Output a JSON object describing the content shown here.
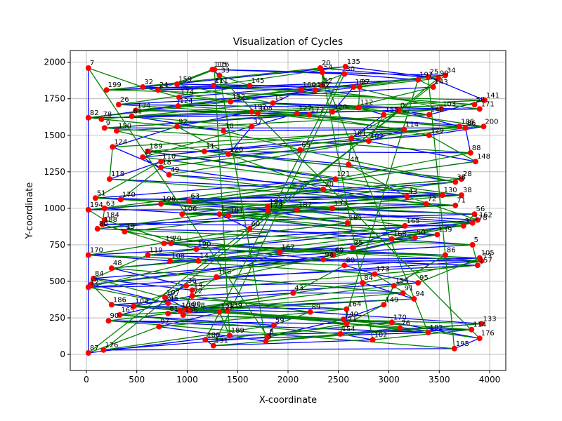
{
  "chart_data": {
    "type": "scatter",
    "title": "Visualization of Cycles",
    "xlabel": "X-coordinate",
    "ylabel": "Y-coordinate",
    "xlim": [
      -160,
      4160
    ],
    "ylim": [
      -110,
      2080
    ],
    "xticks": [
      0,
      500,
      1000,
      1500,
      2000,
      2500,
      3000,
      3500,
      4000
    ],
    "yticks": [
      0,
      250,
      500,
      750,
      1000,
      1250,
      1500,
      1750,
      2000
    ],
    "grid": true,
    "marker_color": "#ff0000",
    "cycle_colors": [
      "#0000ff",
      "#008000"
    ],
    "points": [
      {
        "label": "7",
        "x": 20,
        "y": 1960
      },
      {
        "label": "115",
        "x": 1250,
        "y": 1950
      },
      {
        "label": "116",
        "x": 1270,
        "y": 1950
      },
      {
        "label": "20",
        "x": 2320,
        "y": 1960
      },
      {
        "label": "135",
        "x": 2570,
        "y": 1970
      },
      {
        "label": "33",
        "x": 1320,
        "y": 1910
      },
      {
        "label": "54",
        "x": 2340,
        "y": 1930
      },
      {
        "label": "30",
        "x": 2560,
        "y": 1920
      },
      {
        "label": "25",
        "x": 3390,
        "y": 1900
      },
      {
        "label": "34",
        "x": 3560,
        "y": 1910
      },
      {
        "label": "90",
        "x": 3490,
        "y": 1890
      },
      {
        "label": "197",
        "x": 3290,
        "y": 1880
      },
      {
        "label": "32",
        "x": 560,
        "y": 1830
      },
      {
        "label": "24",
        "x": 710,
        "y": 1810
      },
      {
        "label": "159",
        "x": 900,
        "y": 1850
      },
      {
        "label": "199",
        "x": 200,
        "y": 1810
      },
      {
        "label": "111",
        "x": 1260,
        "y": 1840
      },
      {
        "label": "145",
        "x": 1620,
        "y": 1840
      },
      {
        "label": "52",
        "x": 2340,
        "y": 1840
      },
      {
        "label": "160",
        "x": 2130,
        "y": 1810
      },
      {
        "label": "162",
        "x": 2270,
        "y": 1810
      },
      {
        "label": "186",
        "x": 2650,
        "y": 1830
      },
      {
        "label": "27",
        "x": 2710,
        "y": 1830
      },
      {
        "label": "143",
        "x": 3440,
        "y": 1830
      },
      {
        "label": "174",
        "x": 920,
        "y": 1760
      },
      {
        "label": "132",
        "x": 1430,
        "y": 1730
      },
      {
        "label": "15",
        "x": 1850,
        "y": 1720
      },
      {
        "label": "141",
        "x": 3950,
        "y": 1740
      },
      {
        "label": "58",
        "x": 3850,
        "y": 1710
      },
      {
        "label": "26",
        "x": 320,
        "y": 1710
      },
      {
        "label": "124",
        "x": 910,
        "y": 1700
      },
      {
        "label": "134",
        "x": 490,
        "y": 1670
      },
      {
        "label": "171",
        "x": 3900,
        "y": 1680
      },
      {
        "label": "103",
        "x": 3520,
        "y": 1680
      },
      {
        "label": "112",
        "x": 2700,
        "y": 1690
      },
      {
        "label": "120",
        "x": 2440,
        "y": 1660
      },
      {
        "label": "140",
        "x": 3400,
        "y": 1640
      },
      {
        "label": "82",
        "x": 20,
        "y": 1620
      },
      {
        "label": "78",
        "x": 150,
        "y": 1610
      },
      {
        "label": "61",
        "x": 450,
        "y": 1630
      },
      {
        "label": "192",
        "x": 1640,
        "y": 1660
      },
      {
        "label": "108",
        "x": 1700,
        "y": 1650
      },
      {
        "label": "127",
        "x": 2090,
        "y": 1650
      },
      {
        "label": "177",
        "x": 2210,
        "y": 1640
      },
      {
        "label": "0",
        "x": 3100,
        "y": 1670
      },
      {
        "label": "155",
        "x": 2950,
        "y": 1640
      },
      {
        "label": "200",
        "x": 3940,
        "y": 1560
      },
      {
        "label": "9",
        "x": 180,
        "y": 1550
      },
      {
        "label": "150",
        "x": 300,
        "y": 1530
      },
      {
        "label": "92",
        "x": 900,
        "y": 1560
      },
      {
        "label": "10",
        "x": 1360,
        "y": 1530
      },
      {
        "label": "37",
        "x": 1640,
        "y": 1560
      },
      {
        "label": "114",
        "x": 3150,
        "y": 1540
      },
      {
        "label": "106",
        "x": 3700,
        "y": 1560
      },
      {
        "label": "86",
        "x": 3760,
        "y": 1550
      },
      {
        "label": "129",
        "x": 3400,
        "y": 1500
      },
      {
        "label": "161",
        "x": 2630,
        "y": 1480
      },
      {
        "label": "102",
        "x": 2800,
        "y": 1460
      },
      {
        "label": "124",
        "x": 260,
        "y": 1420
      },
      {
        "label": "88",
        "x": 3810,
        "y": 1380
      },
      {
        "label": "11",
        "x": 1170,
        "y": 1390
      },
      {
        "label": "126",
        "x": 1410,
        "y": 1370
      },
      {
        "label": "65",
        "x": 2120,
        "y": 1400
      },
      {
        "label": "22",
        "x": 560,
        "y": 1350
      },
      {
        "label": "189",
        "x": 610,
        "y": 1390
      },
      {
        "label": "110",
        "x": 740,
        "y": 1320
      },
      {
        "label": "18",
        "x": 740,
        "y": 1280
      },
      {
        "label": "148",
        "x": 3860,
        "y": 1320
      },
      {
        "label": "48",
        "x": 2600,
        "y": 1300
      },
      {
        "label": "49",
        "x": 820,
        "y": 1230
      },
      {
        "label": "118",
        "x": 230,
        "y": 1200
      },
      {
        "label": "121",
        "x": 2470,
        "y": 1200
      },
      {
        "label": "28",
        "x": 3720,
        "y": 1200
      },
      {
        "label": "30",
        "x": 2350,
        "y": 1130
      },
      {
        "label": "38",
        "x": 3660,
        "y": 1180
      },
      {
        "label": "130",
        "x": 3530,
        "y": 1090
      },
      {
        "label": "38",
        "x": 3720,
        "y": 1090
      },
      {
        "label": "51",
        "x": 90,
        "y": 1070
      },
      {
        "label": "170",
        "x": 340,
        "y": 1060
      },
      {
        "label": "63",
        "x": 1020,
        "y": 1050
      },
      {
        "label": "43",
        "x": 3180,
        "y": 1080
      },
      {
        "label": "72",
        "x": 3370,
        "y": 1030
      },
      {
        "label": "71",
        "x": 3660,
        "y": 1020
      },
      {
        "label": "194",
        "x": 20,
        "y": 990
      },
      {
        "label": "63",
        "x": 180,
        "y": 1000
      },
      {
        "label": "196",
        "x": 740,
        "y": 1030
      },
      {
        "label": "106",
        "x": 950,
        "y": 960
      },
      {
        "label": "193",
        "x": 1800,
        "y": 1010
      },
      {
        "label": "173",
        "x": 1800,
        "y": 980
      },
      {
        "label": "187",
        "x": 2090,
        "y": 990
      },
      {
        "label": "133",
        "x": 2440,
        "y": 1000
      },
      {
        "label": "56",
        "x": 3850,
        "y": 960
      },
      {
        "label": "162",
        "x": 3880,
        "y": 920
      },
      {
        "label": "1",
        "x": 1320,
        "y": 960
      },
      {
        "label": "101",
        "x": 1410,
        "y": 950
      },
      {
        "label": "184",
        "x": 180,
        "y": 920
      },
      {
        "label": "188",
        "x": 160,
        "y": 890
      },
      {
        "label": "181",
        "x": 2590,
        "y": 900
      },
      {
        "label": "178",
        "x": 3830,
        "y": 900
      },
      {
        "label": "80",
        "x": 110,
        "y": 860
      },
      {
        "label": "60",
        "x": 1620,
        "y": 860
      },
      {
        "label": "165",
        "x": 3160,
        "y": 880
      },
      {
        "label": "19",
        "x": 380,
        "y": 840
      },
      {
        "label": "3",
        "x": 3740,
        "y": 880
      },
      {
        "label": "168",
        "x": 3030,
        "y": 790
      },
      {
        "label": "50",
        "x": 3260,
        "y": 800
      },
      {
        "label": "139",
        "x": 3480,
        "y": 820
      },
      {
        "label": "190",
        "x": 1090,
        "y": 720
      },
      {
        "label": "19",
        "x": 770,
        "y": 760
      },
      {
        "label": "70",
        "x": 840,
        "y": 760
      },
      {
        "label": "35",
        "x": 2640,
        "y": 730
      },
      {
        "label": "5",
        "x": 3830,
        "y": 750
      },
      {
        "label": "170",
        "x": 20,
        "y": 680
      },
      {
        "label": "119",
        "x": 610,
        "y": 680
      },
      {
        "label": "167",
        "x": 1920,
        "y": 700
      },
      {
        "label": "108",
        "x": 830,
        "y": 640
      },
      {
        "label": "14",
        "x": 1110,
        "y": 640
      },
      {
        "label": "96",
        "x": 2350,
        "y": 650
      },
      {
        "label": "69",
        "x": 2450,
        "y": 680
      },
      {
        "label": "86",
        "x": 3560,
        "y": 680
      },
      {
        "label": "105",
        "x": 3900,
        "y": 660
      },
      {
        "label": "13",
        "x": 3920,
        "y": 640
      },
      {
        "label": "48",
        "x": 250,
        "y": 590
      },
      {
        "label": "157",
        "x": 3880,
        "y": 610
      },
      {
        "label": "80",
        "x": 2560,
        "y": 610
      },
      {
        "label": "84",
        "x": 70,
        "y": 520
      },
      {
        "label": "108",
        "x": 1290,
        "y": 530
      },
      {
        "label": "173",
        "x": 2860,
        "y": 550
      },
      {
        "label": "12",
        "x": 20,
        "y": 460
      },
      {
        "label": "5",
        "x": 50,
        "y": 480
      },
      {
        "label": "36",
        "x": 990,
        "y": 470
      },
      {
        "label": "154",
        "x": 3050,
        "y": 470
      },
      {
        "label": "95",
        "x": 3290,
        "y": 490
      },
      {
        "label": "84",
        "x": 2740,
        "y": 490
      },
      {
        "label": "91",
        "x": 3140,
        "y": 420
      },
      {
        "label": "14",
        "x": 1050,
        "y": 440
      },
      {
        "label": "43",
        "x": 2050,
        "y": 420
      },
      {
        "label": "107",
        "x": 780,
        "y": 390
      },
      {
        "label": "72",
        "x": 1050,
        "y": 400
      },
      {
        "label": "94",
        "x": 3250,
        "y": 380
      },
      {
        "label": "45",
        "x": 810,
        "y": 350
      },
      {
        "label": "186",
        "x": 250,
        "y": 340
      },
      {
        "label": "104",
        "x": 470,
        "y": 330
      },
      {
        "label": "149",
        "x": 2950,
        "y": 340
      },
      {
        "label": "109",
        "x": 930,
        "y": 300
      },
      {
        "label": "100",
        "x": 990,
        "y": 310
      },
      {
        "label": "158",
        "x": 1030,
        "y": 300
      },
      {
        "label": "156",
        "x": 960,
        "y": 270
      },
      {
        "label": "81",
        "x": 810,
        "y": 280
      },
      {
        "label": "164",
        "x": 2580,
        "y": 310
      },
      {
        "label": "89",
        "x": 2220,
        "y": 290
      },
      {
        "label": "165",
        "x": 330,
        "y": 270
      },
      {
        "label": "128",
        "x": 1320,
        "y": 290
      },
      {
        "label": "139",
        "x": 1400,
        "y": 300
      },
      {
        "label": "140",
        "x": 2550,
        "y": 240
      },
      {
        "label": "71",
        "x": 2580,
        "y": 210
      },
      {
        "label": "170",
        "x": 3030,
        "y": 220
      },
      {
        "label": "76",
        "x": 3110,
        "y": 180
      },
      {
        "label": "114",
        "x": 3820,
        "y": 170
      },
      {
        "label": "133",
        "x": 3920,
        "y": 210
      },
      {
        "label": "90",
        "x": 220,
        "y": 230
      },
      {
        "label": "97",
        "x": 720,
        "y": 190
      },
      {
        "label": "59",
        "x": 1860,
        "y": 200
      },
      {
        "label": "154",
        "x": 2520,
        "y": 140
      },
      {
        "label": "189",
        "x": 1420,
        "y": 130
      },
      {
        "label": "182",
        "x": 3390,
        "y": 150
      },
      {
        "label": "176",
        "x": 3900,
        "y": 110
      },
      {
        "label": "8",
        "x": 1800,
        "y": 120
      },
      {
        "label": "180",
        "x": 1180,
        "y": 100
      },
      {
        "label": "3",
        "x": 1780,
        "y": 90
      },
      {
        "label": "102",
        "x": 2840,
        "y": 100
      },
      {
        "label": "131",
        "x": 1260,
        "y": 60
      },
      {
        "label": "195",
        "x": 3650,
        "y": 40
      },
      {
        "label": "87",
        "x": 20,
        "y": 10
      },
      {
        "label": "126",
        "x": 170,
        "y": 30
      }
    ],
    "cycles": [
      {
        "color": "#0000ff",
        "path": [
          7,
          1,
          5,
          16,
          15,
          17,
          21,
          35,
          39,
          50,
          52,
          57,
          62,
          65,
          70,
          75,
          78,
          80,
          87,
          91,
          96,
          103,
          107,
          112,
          115,
          120,
          124,
          127,
          132,
          138,
          142,
          149,
          155,
          160,
          165,
          168,
          171,
          175,
          178,
          176,
          170,
          163,
          159,
          150,
          145,
          139,
          133,
          128,
          121,
          116,
          111,
          104,
          100,
          93,
          86,
          82,
          77,
          71,
          64,
          59,
          54,
          47,
          43,
          37,
          30,
          24,
          18,
          13,
          11,
          6,
          3,
          10,
          23,
          29,
          32,
          41,
          46,
          55,
          60,
          68,
          74,
          83,
          89,
          98,
          108,
          117,
          125,
          135,
          147,
          156,
          166,
          172,
          177,
          174,
          167,
          154,
          143,
          131,
          119,
          109,
          97,
          88,
          79,
          67,
          56,
          45,
          34,
          26,
          19,
          9,
          2,
          14,
          22,
          31,
          40,
          49,
          58,
          66,
          73,
          81,
          90,
          99,
          106,
          114,
          122,
          130,
          137,
          146,
          153,
          161,
          169,
          162,
          151,
          140,
          129,
          118,
          105,
          94,
          84,
          72,
          61,
          51,
          42,
          33,
          25,
          20,
          12,
          4,
          8,
          27,
          36,
          44,
          53,
          63,
          69,
          76,
          85,
          92,
          101,
          110,
          113,
          123,
          126,
          134,
          136,
          141,
          144,
          148,
          152,
          157,
          158,
          164,
          173,
          0
        ]
      },
      {
        "color": "#008000",
        "path": [
          0,
          12,
          24,
          36,
          48,
          60,
          72,
          84,
          96,
          108,
          120,
          132,
          144,
          156,
          168,
          4,
          16,
          28,
          40,
          52,
          64,
          76,
          88,
          100,
          112,
          124,
          136,
          148,
          160,
          172,
          8,
          20,
          32,
          44,
          56,
          68,
          80,
          92,
          104,
          116,
          128,
          140,
          152,
          164,
          176,
          2,
          14,
          26,
          38,
          50,
          62,
          74,
          86,
          98,
          110,
          122,
          134,
          146,
          158,
          170,
          6,
          18,
          30,
          42,
          54,
          66,
          78,
          90,
          102,
          114,
          126,
          138,
          150,
          162,
          174,
          10,
          22,
          34,
          46,
          58,
          70,
          82,
          94,
          106,
          118,
          130,
          142,
          154,
          166,
          178,
          1,
          13,
          25,
          37,
          49,
          61,
          73,
          85,
          97,
          109,
          121,
          133,
          145,
          157,
          169,
          5,
          17,
          29,
          41,
          53,
          65,
          77,
          89,
          101,
          113,
          125,
          137,
          149,
          161,
          173,
          9,
          21,
          33,
          45,
          57,
          69,
          81,
          93,
          105,
          117,
          129,
          141,
          153,
          165,
          177,
          3,
          15,
          27,
          39,
          51,
          63,
          75,
          87,
          99,
          111,
          123,
          135,
          147,
          159,
          171,
          7,
          19,
          31,
          43,
          55,
          67,
          79,
          91,
          103,
          115,
          127,
          139,
          151,
          163,
          175,
          11,
          23,
          35,
          47,
          59,
          71,
          83,
          95,
          107,
          119,
          131,
          143,
          155,
          167,
          0
        ]
      }
    ]
  }
}
